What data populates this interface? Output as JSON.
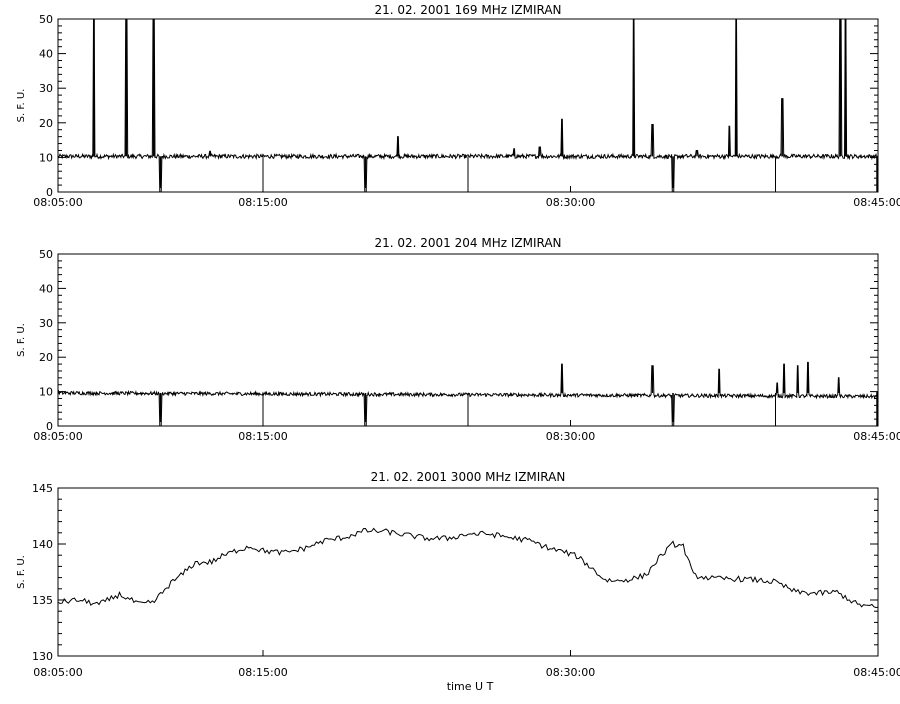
{
  "chart_data": [
    {
      "type": "line",
      "title": "21. 02. 2001   169 MHz   IZMIRAN",
      "ylabel": "S. F. U.",
      "xlabel": "",
      "xlim": [
        "08:05:00",
        "08:45:00"
      ],
      "ylim": [
        0,
        50
      ],
      "yticks": [
        0,
        10,
        20,
        30,
        40,
        50
      ],
      "xticks": [
        "08:05:00",
        "08:15:00",
        "08:30:00",
        "08:45:00"
      ],
      "baseline": 10.3,
      "noise": 0.6,
      "spikes": [
        {
          "t": "08:06:45",
          "v": 50
        },
        {
          "t": "08:08:20",
          "v": 50
        },
        {
          "t": "08:09:40",
          "v": 50
        },
        {
          "t": "08:12:25",
          "v": 11.8
        },
        {
          "t": "08:21:35",
          "v": 16
        },
        {
          "t": "08:27:15",
          "v": 12.5
        },
        {
          "t": "08:28:30",
          "v": 13
        },
        {
          "t": "08:29:35",
          "v": 21
        },
        {
          "t": "08:33:05",
          "v": 50
        },
        {
          "t": "08:34:00",
          "v": 19.5
        },
        {
          "t": "08:36:10",
          "v": 12
        },
        {
          "t": "08:37:45",
          "v": 19
        },
        {
          "t": "08:38:05",
          "v": 50
        },
        {
          "t": "08:40:20",
          "v": 27
        },
        {
          "t": "08:43:10",
          "v": 50
        },
        {
          "t": "08:43:25",
          "v": 50
        }
      ],
      "dropouts": [
        {
          "t": "08:10:00",
          "v": 0
        },
        {
          "t": "08:20:00",
          "v": 0
        },
        {
          "t": "08:35:00",
          "v": 0
        }
      ],
      "markers": [
        "08:15:00",
        "08:25:00",
        "08:40:00"
      ]
    },
    {
      "type": "line",
      "title": "21. 02. 2001   204 MHz   IZMIRAN",
      "ylabel": "S. F. U.",
      "xlabel": "",
      "xlim": [
        "08:05:00",
        "08:45:00"
      ],
      "ylim": [
        0,
        50
      ],
      "yticks": [
        0,
        10,
        20,
        30,
        40,
        50
      ],
      "xticks": [
        "08:05:00",
        "08:15:00",
        "08:30:00",
        "08:45:00"
      ],
      "baseline_start": 9.6,
      "baseline_end": 8.6,
      "noise": 0.5,
      "spikes": [
        {
          "t": "08:29:35",
          "v": 18
        },
        {
          "t": "08:34:00",
          "v": 17.5
        },
        {
          "t": "08:37:15",
          "v": 16.5
        },
        {
          "t": "08:40:05",
          "v": 12.5
        },
        {
          "t": "08:40:25",
          "v": 18
        },
        {
          "t": "08:41:05",
          "v": 17.5
        },
        {
          "t": "08:41:35",
          "v": 18.5
        },
        {
          "t": "08:43:05",
          "v": 14
        }
      ],
      "dropouts": [
        {
          "t": "08:10:00",
          "v": 0
        },
        {
          "t": "08:20:00",
          "v": 0
        },
        {
          "t": "08:35:00",
          "v": 0
        }
      ],
      "markers": [
        "08:15:00",
        "08:25:00",
        "08:40:00"
      ]
    },
    {
      "type": "line",
      "title": "21. 02. 2001   3000 MHz   IZMIRAN",
      "ylabel": "S. F. U.",
      "xlabel": "time  U T",
      "xlim": [
        "08:05:00",
        "08:45:00"
      ],
      "ylim": [
        130,
        145
      ],
      "yticks": [
        130,
        135,
        140,
        145
      ],
      "xticks": [
        "08:05:00",
        "08:15:00",
        "08:30:00",
        "08:45:00"
      ],
      "noise": 0.25,
      "x": [
        "08:05:00",
        "08:06:00",
        "08:07:00",
        "08:08:00",
        "08:09:00",
        "08:09:40",
        "08:10:30",
        "08:11:00",
        "08:11:40",
        "08:12:30",
        "08:13:00",
        "08:13:40",
        "08:14:20",
        "08:15:00",
        "08:16:00",
        "08:17:00",
        "08:18:00",
        "08:19:00",
        "08:20:00",
        "08:21:00",
        "08:22:00",
        "08:23:00",
        "08:24:00",
        "08:25:00",
        "08:26:00",
        "08:27:00",
        "08:28:00",
        "08:29:00",
        "08:29:40",
        "08:30:20",
        "08:31:00",
        "08:31:40",
        "08:32:20",
        "08:33:00",
        "08:33:40",
        "08:34:20",
        "08:35:00",
        "08:35:30",
        "08:36:00",
        "08:37:00",
        "08:38:00",
        "08:39:00",
        "08:40:00",
        "08:41:00",
        "08:42:00",
        "08:43:00",
        "08:44:00",
        "08:45:00"
      ],
      "y": [
        134.8,
        135,
        134.6,
        135.5,
        134.6,
        134.8,
        136.5,
        137.2,
        138.3,
        138.4,
        138.9,
        139.4,
        139.8,
        139.4,
        139.2,
        139.6,
        140.3,
        140.6,
        141.2,
        141.1,
        140.8,
        140.5,
        140.5,
        140.9,
        140.9,
        140.6,
        140.3,
        139.6,
        139.3,
        138.9,
        137.9,
        136.8,
        136.7,
        136.9,
        137.2,
        138.8,
        140,
        139.8,
        137.2,
        136.9,
        136.9,
        136.8,
        136.6,
        135.7,
        135.6,
        135.7,
        134.6,
        134.3
      ]
    }
  ]
}
